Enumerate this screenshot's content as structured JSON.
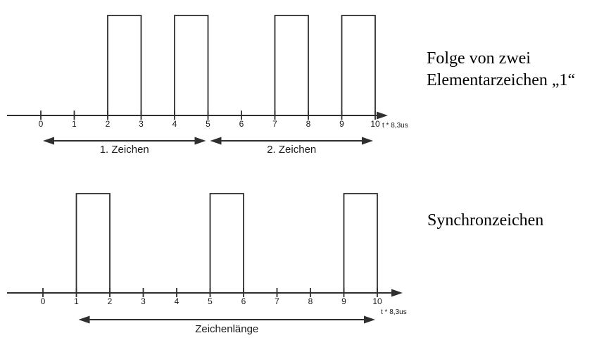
{
  "colors": {
    "line": "#2f2f2f",
    "text": "#1a1a1a"
  },
  "chart_data": [
    {
      "type": "pulse-timing",
      "title": "Folge von zwei Elementarzeichen „1“",
      "caption_lines": [
        "Folge von zwei",
        "Elementarzeichen „1“"
      ],
      "xlabel": "t * 8,3us",
      "x_ticks": [
        0,
        1,
        2,
        3,
        4,
        5,
        6,
        7,
        8,
        9,
        10
      ],
      "x_range": [
        0,
        10
      ],
      "pulse_level": 1,
      "pulse_intervals": [
        [
          2,
          3
        ],
        [
          4,
          5
        ],
        [
          7,
          8
        ],
        [
          9,
          10
        ]
      ],
      "spans": [
        {
          "from": 0,
          "to": 5,
          "label": "1. Zeichen"
        },
        {
          "from": 5,
          "to": 10,
          "label": "2. Zeichen"
        }
      ]
    },
    {
      "type": "pulse-timing",
      "title": "Synchronzeichen",
      "caption_lines": [
        "Synchronzeichen"
      ],
      "xlabel": "t * 8,3us",
      "x_ticks": [
        0,
        1,
        2,
        3,
        4,
        5,
        6,
        7,
        8,
        9,
        10
      ],
      "x_range": [
        0,
        10
      ],
      "pulse_level": 1,
      "pulse_intervals": [
        [
          1,
          2
        ],
        [
          5,
          6
        ],
        [
          9,
          10
        ]
      ],
      "spans": [
        {
          "from": 1,
          "to": 10,
          "label": "Zeichenlänge"
        }
      ]
    }
  ]
}
